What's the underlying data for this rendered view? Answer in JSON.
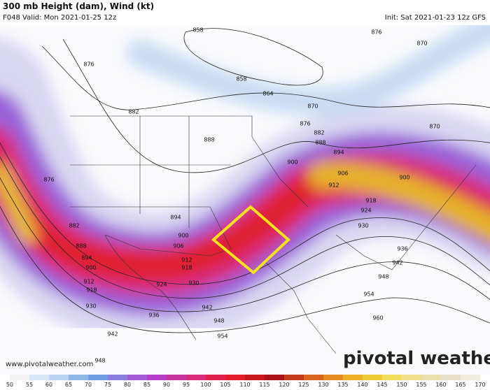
{
  "header": {
    "title": "300 mb Height (dam), Wind (kt)",
    "valid": "F048 Valid: Mon 2021-01-25 12z",
    "init": "Init: Sat 2021-01-23 12z GFS"
  },
  "contour_labels": [
    "858",
    "876",
    "870",
    "858",
    "864",
    "876",
    "882",
    "870",
    "876",
    "870",
    "888",
    "882",
    "888",
    "894",
    "876",
    "900",
    "906",
    "900",
    "912",
    "918",
    "882",
    "888",
    "894",
    "900",
    "906",
    "912",
    "918",
    "924",
    "930",
    "936",
    "942",
    "948",
    "954",
    "960",
    "894",
    "900",
    "912",
    "918",
    "924",
    "930",
    "930",
    "936",
    "942",
    "948",
    "954",
    "942",
    "948"
  ],
  "watermark": "pivotal weather",
  "url": "www.pivotalweather.com",
  "colorbar": {
    "ticks": [
      "50",
      "55",
      "60",
      "65",
      "70",
      "75",
      "80",
      "85",
      "90",
      "95",
      "100",
      "105",
      "110",
      "115",
      "120",
      "125",
      "130",
      "135",
      "140",
      "145",
      "150",
      "155",
      "160",
      "165",
      "170"
    ]
  }
}
